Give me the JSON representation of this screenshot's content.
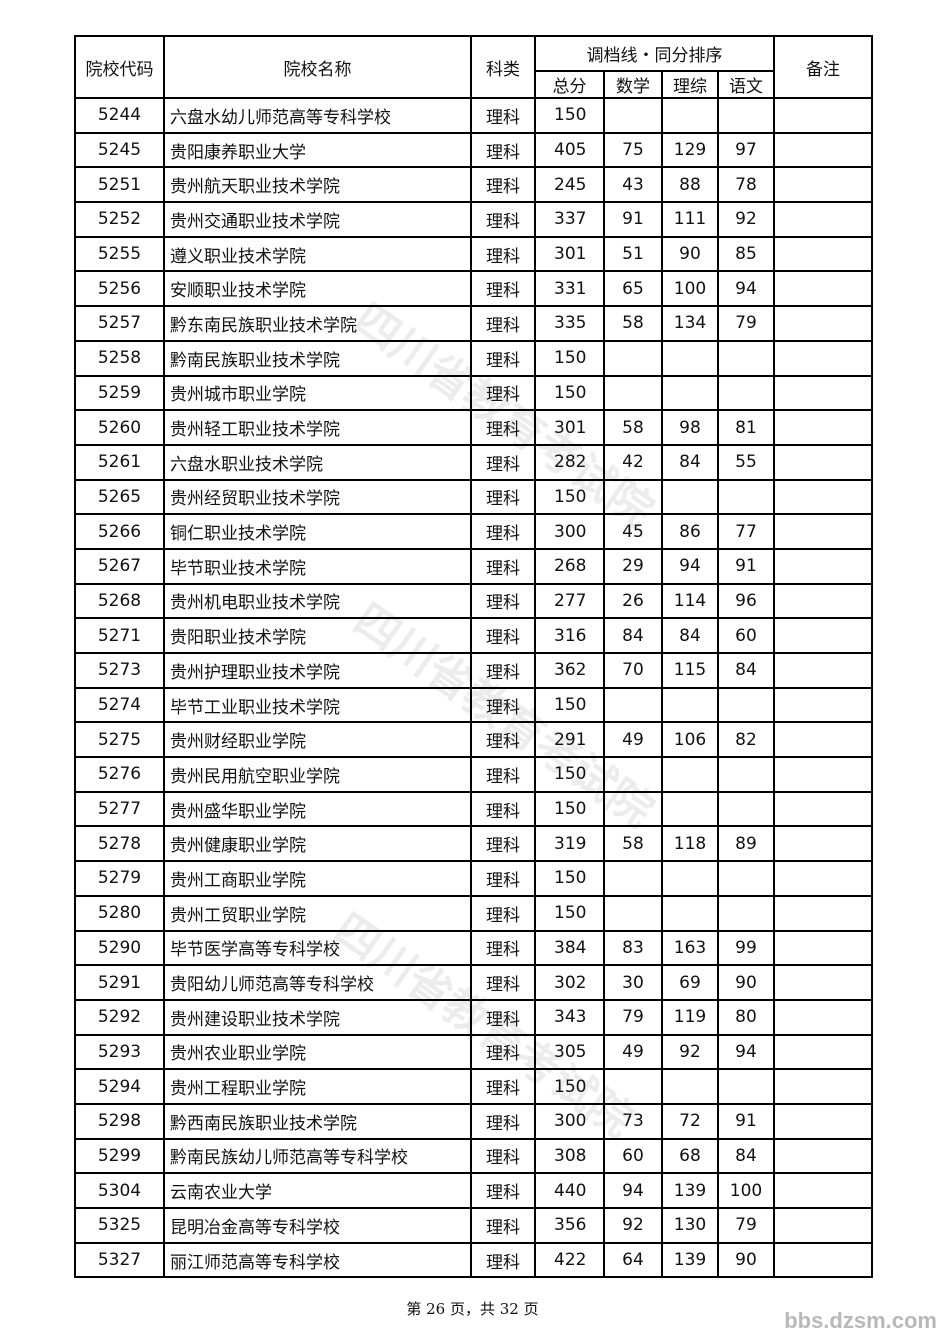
{
  "header": {
    "code": "院校代码",
    "name": "院校名称",
    "category": "科类",
    "group": "调档线・同分排序",
    "total": "总分",
    "math": "数学",
    "science": "理综",
    "chinese": "语文",
    "remark": "备注"
  },
  "rows": [
    {
      "code": "5244",
      "name": "六盘水幼儿师范高等专科学校",
      "cat": "理科",
      "total": "150",
      "math": "",
      "sci": "",
      "chn": "",
      "remark": ""
    },
    {
      "code": "5245",
      "name": "贵阳康养职业大学",
      "cat": "理科",
      "total": "405",
      "math": "75",
      "sci": "129",
      "chn": "97",
      "remark": ""
    },
    {
      "code": "5251",
      "name": "贵州航天职业技术学院",
      "cat": "理科",
      "total": "245",
      "math": "43",
      "sci": "88",
      "chn": "78",
      "remark": ""
    },
    {
      "code": "5252",
      "name": "贵州交通职业技术学院",
      "cat": "理科",
      "total": "337",
      "math": "91",
      "sci": "111",
      "chn": "92",
      "remark": ""
    },
    {
      "code": "5255",
      "name": "遵义职业技术学院",
      "cat": "理科",
      "total": "301",
      "math": "51",
      "sci": "90",
      "chn": "85",
      "remark": ""
    },
    {
      "code": "5256",
      "name": "安顺职业技术学院",
      "cat": "理科",
      "total": "331",
      "math": "65",
      "sci": "100",
      "chn": "94",
      "remark": ""
    },
    {
      "code": "5257",
      "name": "黔东南民族职业技术学院",
      "cat": "理科",
      "total": "335",
      "math": "58",
      "sci": "134",
      "chn": "79",
      "remark": ""
    },
    {
      "code": "5258",
      "name": "黔南民族职业技术学院",
      "cat": "理科",
      "total": "150",
      "math": "",
      "sci": "",
      "chn": "",
      "remark": ""
    },
    {
      "code": "5259",
      "name": "贵州城市职业学院",
      "cat": "理科",
      "total": "150",
      "math": "",
      "sci": "",
      "chn": "",
      "remark": ""
    },
    {
      "code": "5260",
      "name": "贵州轻工职业技术学院",
      "cat": "理科",
      "total": "301",
      "math": "58",
      "sci": "98",
      "chn": "81",
      "remark": ""
    },
    {
      "code": "5261",
      "name": "六盘水职业技术学院",
      "cat": "理科",
      "total": "282",
      "math": "42",
      "sci": "84",
      "chn": "55",
      "remark": ""
    },
    {
      "code": "5265",
      "name": "贵州经贸职业技术学院",
      "cat": "理科",
      "total": "150",
      "math": "",
      "sci": "",
      "chn": "",
      "remark": ""
    },
    {
      "code": "5266",
      "name": "铜仁职业技术学院",
      "cat": "理科",
      "total": "300",
      "math": "45",
      "sci": "86",
      "chn": "77",
      "remark": ""
    },
    {
      "code": "5267",
      "name": "毕节职业技术学院",
      "cat": "理科",
      "total": "268",
      "math": "29",
      "sci": "94",
      "chn": "91",
      "remark": ""
    },
    {
      "code": "5268",
      "name": "贵州机电职业技术学院",
      "cat": "理科",
      "total": "277",
      "math": "26",
      "sci": "114",
      "chn": "96",
      "remark": ""
    },
    {
      "code": "5271",
      "name": "贵阳职业技术学院",
      "cat": "理科",
      "total": "316",
      "math": "84",
      "sci": "84",
      "chn": "60",
      "remark": ""
    },
    {
      "code": "5273",
      "name": "贵州护理职业技术学院",
      "cat": "理科",
      "total": "362",
      "math": "70",
      "sci": "115",
      "chn": "84",
      "remark": ""
    },
    {
      "code": "5274",
      "name": "毕节工业职业技术学院",
      "cat": "理科",
      "total": "150",
      "math": "",
      "sci": "",
      "chn": "",
      "remark": ""
    },
    {
      "code": "5275",
      "name": "贵州财经职业学院",
      "cat": "理科",
      "total": "291",
      "math": "49",
      "sci": "106",
      "chn": "82",
      "remark": ""
    },
    {
      "code": "5276",
      "name": "贵州民用航空职业学院",
      "cat": "理科",
      "total": "150",
      "math": "",
      "sci": "",
      "chn": "",
      "remark": ""
    },
    {
      "code": "5277",
      "name": "贵州盛华职业学院",
      "cat": "理科",
      "total": "150",
      "math": "",
      "sci": "",
      "chn": "",
      "remark": ""
    },
    {
      "code": "5278",
      "name": "贵州健康职业学院",
      "cat": "理科",
      "total": "319",
      "math": "58",
      "sci": "118",
      "chn": "89",
      "remark": ""
    },
    {
      "code": "5279",
      "name": "贵州工商职业学院",
      "cat": "理科",
      "total": "150",
      "math": "",
      "sci": "",
      "chn": "",
      "remark": ""
    },
    {
      "code": "5280",
      "name": "贵州工贸职业学院",
      "cat": "理科",
      "total": "150",
      "math": "",
      "sci": "",
      "chn": "",
      "remark": ""
    },
    {
      "code": "5290",
      "name": "毕节医学高等专科学校",
      "cat": "理科",
      "total": "384",
      "math": "83",
      "sci": "163",
      "chn": "99",
      "remark": ""
    },
    {
      "code": "5291",
      "name": "贵阳幼儿师范高等专科学校",
      "cat": "理科",
      "total": "302",
      "math": "30",
      "sci": "69",
      "chn": "90",
      "remark": ""
    },
    {
      "code": "5292",
      "name": "贵州建设职业技术学院",
      "cat": "理科",
      "total": "343",
      "math": "79",
      "sci": "119",
      "chn": "80",
      "remark": ""
    },
    {
      "code": "5293",
      "name": "贵州农业职业学院",
      "cat": "理科",
      "total": "305",
      "math": "49",
      "sci": "92",
      "chn": "94",
      "remark": ""
    },
    {
      "code": "5294",
      "name": "贵州工程职业学院",
      "cat": "理科",
      "total": "150",
      "math": "",
      "sci": "",
      "chn": "",
      "remark": ""
    },
    {
      "code": "5298",
      "name": "黔西南民族职业技术学院",
      "cat": "理科",
      "total": "300",
      "math": "73",
      "sci": "72",
      "chn": "91",
      "remark": ""
    },
    {
      "code": "5299",
      "name": "黔南民族幼儿师范高等专科学校",
      "cat": "理科",
      "total": "308",
      "math": "60",
      "sci": "68",
      "chn": "84",
      "remark": ""
    },
    {
      "code": "5304",
      "name": "云南农业大学",
      "cat": "理科",
      "total": "440",
      "math": "94",
      "sci": "139",
      "chn": "100",
      "remark": ""
    },
    {
      "code": "5325",
      "name": "昆明冶金高等专科学校",
      "cat": "理科",
      "total": "356",
      "math": "92",
      "sci": "130",
      "chn": "79",
      "remark": ""
    },
    {
      "code": "5327",
      "name": "丽江师范高等专科学校",
      "cat": "理科",
      "total": "422",
      "math": "64",
      "sci": "139",
      "chn": "90",
      "remark": ""
    }
  ],
  "footer": {
    "page": "第 26 页，共 32 页"
  },
  "site_watermark": "bbs.dzsm.com",
  "watermark": "四川省教育考试院"
}
